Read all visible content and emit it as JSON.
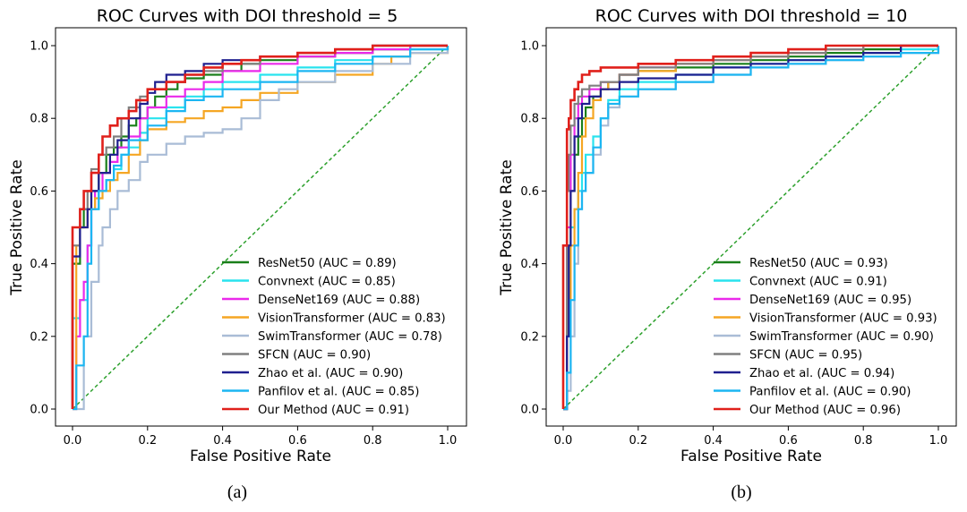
{
  "chart_data": [
    {
      "type": "line",
      "title": "ROC Curves with DOI threshold = 5",
      "xlabel": "False Positive Rate",
      "ylabel": "True Positive Rate",
      "xlim": [
        0.0,
        1.0
      ],
      "ylim": [
        0.0,
        1.0
      ],
      "xticks": [
        "0.0",
        "0.2",
        "0.4",
        "0.6",
        "0.8",
        "1.0"
      ],
      "yticks": [
        "0.0",
        "0.2",
        "0.4",
        "0.6",
        "0.8",
        "1.0"
      ],
      "grid": false,
      "legend_position": "lower-right",
      "subfigure_label": "(a)",
      "diagonal": {
        "x": [
          0,
          1
        ],
        "y": [
          0,
          1
        ],
        "color": "#2ca02c"
      },
      "series": [
        {
          "name": "ResNet50 (AUC = 0.89)",
          "color": "#1a7f1a",
          "x": [
            0,
            0,
            0.02,
            0.03,
            0.05,
            0.07,
            0.09,
            0.11,
            0.13,
            0.15,
            0.17,
            0.2,
            0.22,
            0.25,
            0.28,
            0.3,
            0.32,
            0.35,
            0.4,
            0.45,
            0.5,
            0.6,
            0.7,
            0.8,
            0.9,
            1.0
          ],
          "y": [
            0,
            0.4,
            0.5,
            0.55,
            0.6,
            0.65,
            0.7,
            0.72,
            0.75,
            0.78,
            0.8,
            0.83,
            0.86,
            0.88,
            0.9,
            0.91,
            0.91,
            0.92,
            0.93,
            0.95,
            0.96,
            0.97,
            0.98,
            0.99,
            1.0,
            1.0
          ]
        },
        {
          "name": "Convnext (AUC = 0.85)",
          "color": "#29e3ee",
          "x": [
            0,
            0,
            0.02,
            0.04,
            0.05,
            0.07,
            0.09,
            0.11,
            0.13,
            0.15,
            0.18,
            0.2,
            0.25,
            0.3,
            0.35,
            0.4,
            0.5,
            0.6,
            0.7,
            0.8,
            0.9,
            1.0
          ],
          "y": [
            0,
            0.25,
            0.3,
            0.45,
            0.55,
            0.6,
            0.63,
            0.66,
            0.7,
            0.72,
            0.76,
            0.8,
            0.83,
            0.86,
            0.88,
            0.9,
            0.92,
            0.94,
            0.96,
            0.97,
            0.99,
            1.0
          ]
        },
        {
          "name": "DenseNet169 (AUC = 0.88)",
          "color": "#ea29ea",
          "x": [
            0,
            0.01,
            0.02,
            0.03,
            0.04,
            0.05,
            0.06,
            0.08,
            0.1,
            0.12,
            0.15,
            0.18,
            0.2,
            0.25,
            0.3,
            0.35,
            0.4,
            0.5,
            0.6,
            0.7,
            0.8,
            0.9,
            1.0
          ],
          "y": [
            0,
            0.2,
            0.3,
            0.35,
            0.45,
            0.55,
            0.6,
            0.65,
            0.68,
            0.72,
            0.75,
            0.8,
            0.83,
            0.86,
            0.88,
            0.9,
            0.93,
            0.95,
            0.97,
            0.98,
            0.99,
            1.0,
            1.0
          ]
        },
        {
          "name": "VisionTransformer (AUC = 0.83)",
          "color": "#f5a623",
          "x": [
            0,
            0.01,
            0.02,
            0.04,
            0.06,
            0.08,
            0.1,
            0.12,
            0.15,
            0.18,
            0.2,
            0.25,
            0.3,
            0.35,
            0.4,
            0.45,
            0.5,
            0.6,
            0.7,
            0.8,
            0.85,
            0.9,
            1.0
          ],
          "y": [
            0,
            0.45,
            0.5,
            0.55,
            0.58,
            0.6,
            0.63,
            0.65,
            0.7,
            0.74,
            0.77,
            0.79,
            0.8,
            0.82,
            0.83,
            0.85,
            0.87,
            0.9,
            0.92,
            0.95,
            0.97,
            0.98,
            1.0
          ]
        },
        {
          "name": "SwimTransformer (AUC = 0.78)",
          "color": "#a9bcd6",
          "x": [
            0,
            0.03,
            0.05,
            0.07,
            0.08,
            0.1,
            0.12,
            0.15,
            0.18,
            0.2,
            0.25,
            0.3,
            0.35,
            0.4,
            0.45,
            0.5,
            0.55,
            0.6,
            0.7,
            0.8,
            0.9,
            1.0
          ],
          "y": [
            0,
            0.2,
            0.35,
            0.45,
            0.5,
            0.55,
            0.6,
            0.63,
            0.68,
            0.7,
            0.73,
            0.75,
            0.76,
            0.77,
            0.8,
            0.85,
            0.88,
            0.9,
            0.93,
            0.95,
            0.98,
            1.0
          ]
        },
        {
          "name": "SFCN (AUC = 0.90)",
          "color": "#808080",
          "x": [
            0,
            0,
            0.02,
            0.04,
            0.05,
            0.07,
            0.09,
            0.11,
            0.13,
            0.15,
            0.18,
            0.2,
            0.25,
            0.3,
            0.35,
            0.4,
            0.5,
            0.6,
            0.7,
            0.8,
            0.9,
            1.0
          ],
          "y": [
            0,
            0.45,
            0.55,
            0.6,
            0.66,
            0.7,
            0.72,
            0.75,
            0.8,
            0.83,
            0.86,
            0.88,
            0.9,
            0.92,
            0.93,
            0.95,
            0.97,
            0.98,
            0.99,
            1.0,
            1.0,
            1.0
          ]
        },
        {
          "name": "Zhao et al. (AUC = 0.90)",
          "color": "#1f1f8f",
          "x": [
            0,
            0,
            0.02,
            0.04,
            0.05,
            0.07,
            0.1,
            0.12,
            0.15,
            0.18,
            0.2,
            0.22,
            0.25,
            0.3,
            0.35,
            0.4,
            0.5,
            0.6,
            0.7,
            0.8,
            0.9,
            1.0
          ],
          "y": [
            0,
            0.42,
            0.5,
            0.55,
            0.6,
            0.65,
            0.7,
            0.74,
            0.8,
            0.84,
            0.87,
            0.9,
            0.92,
            0.93,
            0.95,
            0.96,
            0.97,
            0.98,
            0.99,
            1.0,
            1.0,
            1.0
          ]
        },
        {
          "name": "Panfilov et al. (AUC = 0.85)",
          "color": "#1cb6f2",
          "x": [
            0,
            0.01,
            0.03,
            0.04,
            0.05,
            0.07,
            0.09,
            0.11,
            0.13,
            0.15,
            0.2,
            0.25,
            0.3,
            0.35,
            0.4,
            0.5,
            0.6,
            0.7,
            0.8,
            0.9,
            1.0
          ],
          "y": [
            0,
            0.12,
            0.2,
            0.4,
            0.55,
            0.6,
            0.63,
            0.67,
            0.7,
            0.74,
            0.78,
            0.82,
            0.85,
            0.86,
            0.88,
            0.9,
            0.93,
            0.95,
            0.97,
            0.99,
            1.0
          ]
        },
        {
          "name": "Our Method (AUC = 0.91)",
          "color": "#e0201b",
          "x": [
            0,
            0,
            0.02,
            0.03,
            0.05,
            0.07,
            0.08,
            0.1,
            0.12,
            0.15,
            0.17,
            0.2,
            0.25,
            0.3,
            0.35,
            0.4,
            0.45,
            0.5,
            0.6,
            0.7,
            0.8,
            0.9,
            1.0
          ],
          "y": [
            0,
            0.5,
            0.55,
            0.6,
            0.65,
            0.7,
            0.75,
            0.78,
            0.8,
            0.82,
            0.85,
            0.88,
            0.9,
            0.92,
            0.94,
            0.95,
            0.96,
            0.97,
            0.98,
            0.99,
            1.0,
            1.0,
            1.0
          ]
        }
      ]
    },
    {
      "type": "line",
      "title": "ROC Curves with DOI threshold = 10",
      "xlabel": "False Positive Rate",
      "ylabel": "True Positive Rate",
      "xlim": [
        0.0,
        1.0
      ],
      "ylim": [
        0.0,
        1.0
      ],
      "xticks": [
        "0.0",
        "0.2",
        "0.4",
        "0.6",
        "0.8",
        "1.0"
      ],
      "yticks": [
        "0.0",
        "0.2",
        "0.4",
        "0.6",
        "0.8",
        "1.0"
      ],
      "grid": false,
      "legend_position": "lower-right",
      "subfigure_label": "(b)",
      "diagonal": {
        "x": [
          0,
          1
        ],
        "y": [
          0,
          1
        ],
        "color": "#2ca02c"
      },
      "series": [
        {
          "name": "ResNet50 (AUC = 0.93)",
          "color": "#1a7f1a",
          "x": [
            0,
            0.01,
            0.015,
            0.02,
            0.03,
            0.04,
            0.05,
            0.06,
            0.08,
            0.1,
            0.12,
            0.15,
            0.2,
            0.3,
            0.4,
            0.5,
            0.6,
            0.7,
            0.8,
            0.9,
            1.0
          ],
          "y": [
            0,
            0.3,
            0.45,
            0.6,
            0.7,
            0.75,
            0.8,
            0.83,
            0.86,
            0.88,
            0.9,
            0.92,
            0.93,
            0.94,
            0.95,
            0.96,
            0.97,
            0.98,
            0.99,
            1.0,
            1.0
          ]
        },
        {
          "name": "Convnext (AUC = 0.91)",
          "color": "#29e3ee",
          "x": [
            0,
            0.01,
            0.02,
            0.03,
            0.04,
            0.05,
            0.06,
            0.08,
            0.1,
            0.12,
            0.15,
            0.2,
            0.3,
            0.4,
            0.5,
            0.6,
            0.7,
            0.8,
            0.9,
            1.0
          ],
          "y": [
            0,
            0.2,
            0.5,
            0.55,
            0.6,
            0.65,
            0.7,
            0.75,
            0.8,
            0.85,
            0.88,
            0.9,
            0.92,
            0.94,
            0.95,
            0.96,
            0.97,
            0.98,
            0.99,
            1.0
          ]
        },
        {
          "name": "DenseNet169 (AUC = 0.95)",
          "color": "#ea29ea",
          "x": [
            0,
            0.01,
            0.02,
            0.03,
            0.04,
            0.05,
            0.07,
            0.1,
            0.15,
            0.2,
            0.3,
            0.4,
            0.5,
            0.6,
            0.7,
            0.8,
            0.9,
            1.0
          ],
          "y": [
            0,
            0.5,
            0.7,
            0.8,
            0.84,
            0.86,
            0.88,
            0.9,
            0.92,
            0.94,
            0.95,
            0.96,
            0.97,
            0.98,
            0.99,
            1.0,
            1.0,
            1.0
          ]
        },
        {
          "name": "VisionTransformer (AUC = 0.93)",
          "color": "#f5a623",
          "x": [
            0,
            0.01,
            0.02,
            0.03,
            0.04,
            0.05,
            0.06,
            0.08,
            0.1,
            0.12,
            0.15,
            0.2,
            0.3,
            0.4,
            0.5,
            0.6,
            0.7,
            0.8,
            0.9,
            1.0
          ],
          "y": [
            0,
            0.3,
            0.45,
            0.55,
            0.65,
            0.75,
            0.8,
            0.85,
            0.88,
            0.9,
            0.92,
            0.93,
            0.95,
            0.96,
            0.97,
            0.98,
            0.99,
            1.0,
            1.0,
            1.0
          ]
        },
        {
          "name": "SwimTransformer (AUC = 0.90)",
          "color": "#a9bcd6",
          "x": [
            0,
            0.01,
            0.02,
            0.03,
            0.04,
            0.05,
            0.06,
            0.08,
            0.1,
            0.12,
            0.15,
            0.2,
            0.3,
            0.4,
            0.5,
            0.6,
            0.7,
            0.8,
            0.9,
            1.0
          ],
          "y": [
            0,
            0.05,
            0.2,
            0.4,
            0.55,
            0.6,
            0.65,
            0.7,
            0.78,
            0.83,
            0.86,
            0.88,
            0.9,
            0.92,
            0.94,
            0.95,
            0.96,
            0.97,
            0.98,
            1.0
          ]
        },
        {
          "name": "SFCN (AUC = 0.95)",
          "color": "#808080",
          "x": [
            0,
            0.01,
            0.015,
            0.02,
            0.03,
            0.04,
            0.05,
            0.07,
            0.1,
            0.15,
            0.2,
            0.3,
            0.4,
            0.5,
            0.6,
            0.7,
            0.8,
            0.9,
            1.0
          ],
          "y": [
            0,
            0.6,
            0.7,
            0.78,
            0.84,
            0.86,
            0.88,
            0.89,
            0.9,
            0.92,
            0.94,
            0.95,
            0.96,
            0.97,
            0.98,
            0.99,
            1.0,
            1.0,
            1.0
          ]
        },
        {
          "name": "Zhao et al. (AUC = 0.94)",
          "color": "#1f1f8f",
          "x": [
            0,
            0.01,
            0.015,
            0.02,
            0.03,
            0.04,
            0.05,
            0.07,
            0.1,
            0.15,
            0.2,
            0.3,
            0.4,
            0.5,
            0.6,
            0.7,
            0.8,
            0.9,
            1.0
          ],
          "y": [
            0,
            0.2,
            0.45,
            0.6,
            0.75,
            0.8,
            0.84,
            0.86,
            0.88,
            0.9,
            0.91,
            0.92,
            0.94,
            0.95,
            0.96,
            0.97,
            0.98,
            1.0,
            1.0
          ]
        },
        {
          "name": "Panfilov et al. (AUC = 0.90)",
          "color": "#1cb6f2",
          "x": [
            0,
            0.01,
            0.02,
            0.03,
            0.04,
            0.05,
            0.06,
            0.08,
            0.1,
            0.12,
            0.15,
            0.2,
            0.3,
            0.4,
            0.5,
            0.6,
            0.7,
            0.8,
            0.9,
            1.0
          ],
          "y": [
            0,
            0.1,
            0.3,
            0.45,
            0.55,
            0.6,
            0.65,
            0.72,
            0.8,
            0.84,
            0.86,
            0.88,
            0.9,
            0.92,
            0.94,
            0.95,
            0.96,
            0.97,
            0.98,
            1.0
          ]
        },
        {
          "name": "Our Method (AUC = 0.96)",
          "color": "#e0201b",
          "x": [
            0,
            0,
            0.01,
            0.015,
            0.02,
            0.03,
            0.04,
            0.05,
            0.07,
            0.1,
            0.15,
            0.2,
            0.3,
            0.4,
            0.5,
            0.6,
            0.7,
            0.8,
            0.9,
            1.0
          ],
          "y": [
            0,
            0.45,
            0.77,
            0.8,
            0.85,
            0.88,
            0.9,
            0.92,
            0.93,
            0.94,
            0.94,
            0.95,
            0.96,
            0.97,
            0.98,
            0.99,
            1.0,
            1.0,
            1.0,
            1.0
          ]
        }
      ]
    }
  ]
}
